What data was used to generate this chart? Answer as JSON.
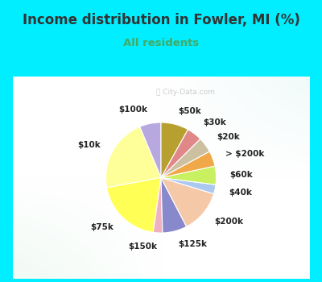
{
  "title": "Income distribution in Fowler, MI (%)",
  "subtitle": "All residents",
  "title_color": "#333333",
  "subtitle_color": "#44aa66",
  "bg_cyan": "#00eeff",
  "watermark": "ⓘ City-Data.com",
  "labels": [
    "$100k",
    "$10k",
    "$75k",
    "$150k",
    "$125k",
    "$200k",
    "$40k",
    "$60k",
    "> $200k",
    "$20k",
    "$30k",
    "$50k"
  ],
  "values": [
    7,
    24,
    22,
    3,
    8,
    14,
    3,
    6,
    5,
    5,
    5,
    9
  ],
  "colors": [
    "#b8a8e0",
    "#ffff99",
    "#ffff55",
    "#f0b0c0",
    "#8888cc",
    "#f5c8a8",
    "#aac8f0",
    "#c8f060",
    "#f0a848",
    "#ccc0a0",
    "#e08888",
    "#b8a030"
  ],
  "label_fontsize": 7.5,
  "startangle": 90,
  "title_fontsize": 12,
  "subtitle_fontsize": 9.5
}
